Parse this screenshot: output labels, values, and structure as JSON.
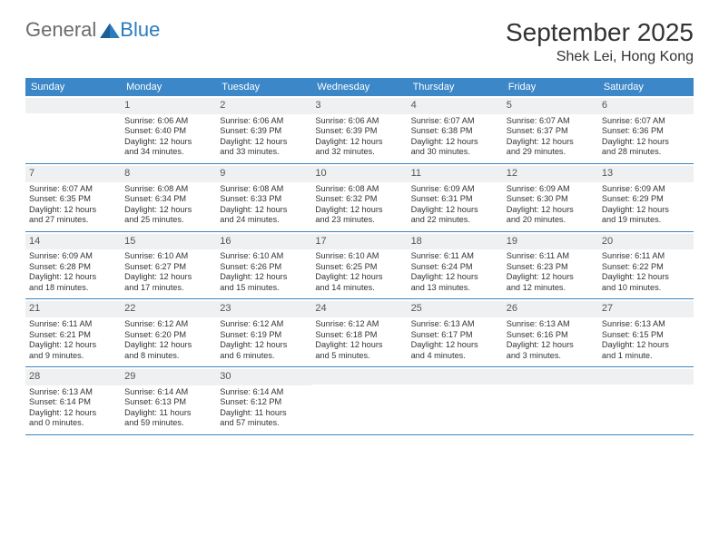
{
  "logo": {
    "part1": "General",
    "part2": "Blue"
  },
  "title": "September 2025",
  "location": "Shek Lei, Hong Kong",
  "colors": {
    "header_bg": "#3b87c8",
    "daynum_bg": "#eef0f2",
    "border": "#3b87c8",
    "text": "#333333",
    "logo_gray": "#6b6b6b",
    "logo_blue": "#2a7bbf"
  },
  "weekdays": [
    "Sunday",
    "Monday",
    "Tuesday",
    "Wednesday",
    "Thursday",
    "Friday",
    "Saturday"
  ],
  "weeks": [
    [
      {
        "n": "",
        "lines": []
      },
      {
        "n": "1",
        "lines": [
          "Sunrise: 6:06 AM",
          "Sunset: 6:40 PM",
          "Daylight: 12 hours",
          "and 34 minutes."
        ]
      },
      {
        "n": "2",
        "lines": [
          "Sunrise: 6:06 AM",
          "Sunset: 6:39 PM",
          "Daylight: 12 hours",
          "and 33 minutes."
        ]
      },
      {
        "n": "3",
        "lines": [
          "Sunrise: 6:06 AM",
          "Sunset: 6:39 PM",
          "Daylight: 12 hours",
          "and 32 minutes."
        ]
      },
      {
        "n": "4",
        "lines": [
          "Sunrise: 6:07 AM",
          "Sunset: 6:38 PM",
          "Daylight: 12 hours",
          "and 30 minutes."
        ]
      },
      {
        "n": "5",
        "lines": [
          "Sunrise: 6:07 AM",
          "Sunset: 6:37 PM",
          "Daylight: 12 hours",
          "and 29 minutes."
        ]
      },
      {
        "n": "6",
        "lines": [
          "Sunrise: 6:07 AM",
          "Sunset: 6:36 PM",
          "Daylight: 12 hours",
          "and 28 minutes."
        ]
      }
    ],
    [
      {
        "n": "7",
        "lines": [
          "Sunrise: 6:07 AM",
          "Sunset: 6:35 PM",
          "Daylight: 12 hours",
          "and 27 minutes."
        ]
      },
      {
        "n": "8",
        "lines": [
          "Sunrise: 6:08 AM",
          "Sunset: 6:34 PM",
          "Daylight: 12 hours",
          "and 25 minutes."
        ]
      },
      {
        "n": "9",
        "lines": [
          "Sunrise: 6:08 AM",
          "Sunset: 6:33 PM",
          "Daylight: 12 hours",
          "and 24 minutes."
        ]
      },
      {
        "n": "10",
        "lines": [
          "Sunrise: 6:08 AM",
          "Sunset: 6:32 PM",
          "Daylight: 12 hours",
          "and 23 minutes."
        ]
      },
      {
        "n": "11",
        "lines": [
          "Sunrise: 6:09 AM",
          "Sunset: 6:31 PM",
          "Daylight: 12 hours",
          "and 22 minutes."
        ]
      },
      {
        "n": "12",
        "lines": [
          "Sunrise: 6:09 AM",
          "Sunset: 6:30 PM",
          "Daylight: 12 hours",
          "and 20 minutes."
        ]
      },
      {
        "n": "13",
        "lines": [
          "Sunrise: 6:09 AM",
          "Sunset: 6:29 PM",
          "Daylight: 12 hours",
          "and 19 minutes."
        ]
      }
    ],
    [
      {
        "n": "14",
        "lines": [
          "Sunrise: 6:09 AM",
          "Sunset: 6:28 PM",
          "Daylight: 12 hours",
          "and 18 minutes."
        ]
      },
      {
        "n": "15",
        "lines": [
          "Sunrise: 6:10 AM",
          "Sunset: 6:27 PM",
          "Daylight: 12 hours",
          "and 17 minutes."
        ]
      },
      {
        "n": "16",
        "lines": [
          "Sunrise: 6:10 AM",
          "Sunset: 6:26 PM",
          "Daylight: 12 hours",
          "and 15 minutes."
        ]
      },
      {
        "n": "17",
        "lines": [
          "Sunrise: 6:10 AM",
          "Sunset: 6:25 PM",
          "Daylight: 12 hours",
          "and 14 minutes."
        ]
      },
      {
        "n": "18",
        "lines": [
          "Sunrise: 6:11 AM",
          "Sunset: 6:24 PM",
          "Daylight: 12 hours",
          "and 13 minutes."
        ]
      },
      {
        "n": "19",
        "lines": [
          "Sunrise: 6:11 AM",
          "Sunset: 6:23 PM",
          "Daylight: 12 hours",
          "and 12 minutes."
        ]
      },
      {
        "n": "20",
        "lines": [
          "Sunrise: 6:11 AM",
          "Sunset: 6:22 PM",
          "Daylight: 12 hours",
          "and 10 minutes."
        ]
      }
    ],
    [
      {
        "n": "21",
        "lines": [
          "Sunrise: 6:11 AM",
          "Sunset: 6:21 PM",
          "Daylight: 12 hours",
          "and 9 minutes."
        ]
      },
      {
        "n": "22",
        "lines": [
          "Sunrise: 6:12 AM",
          "Sunset: 6:20 PM",
          "Daylight: 12 hours",
          "and 8 minutes."
        ]
      },
      {
        "n": "23",
        "lines": [
          "Sunrise: 6:12 AM",
          "Sunset: 6:19 PM",
          "Daylight: 12 hours",
          "and 6 minutes."
        ]
      },
      {
        "n": "24",
        "lines": [
          "Sunrise: 6:12 AM",
          "Sunset: 6:18 PM",
          "Daylight: 12 hours",
          "and 5 minutes."
        ]
      },
      {
        "n": "25",
        "lines": [
          "Sunrise: 6:13 AM",
          "Sunset: 6:17 PM",
          "Daylight: 12 hours",
          "and 4 minutes."
        ]
      },
      {
        "n": "26",
        "lines": [
          "Sunrise: 6:13 AM",
          "Sunset: 6:16 PM",
          "Daylight: 12 hours",
          "and 3 minutes."
        ]
      },
      {
        "n": "27",
        "lines": [
          "Sunrise: 6:13 AM",
          "Sunset: 6:15 PM",
          "Daylight: 12 hours",
          "and 1 minute."
        ]
      }
    ],
    [
      {
        "n": "28",
        "lines": [
          "Sunrise: 6:13 AM",
          "Sunset: 6:14 PM",
          "Daylight: 12 hours",
          "and 0 minutes."
        ]
      },
      {
        "n": "29",
        "lines": [
          "Sunrise: 6:14 AM",
          "Sunset: 6:13 PM",
          "Daylight: 11 hours",
          "and 59 minutes."
        ]
      },
      {
        "n": "30",
        "lines": [
          "Sunrise: 6:14 AM",
          "Sunset: 6:12 PM",
          "Daylight: 11 hours",
          "and 57 minutes."
        ]
      },
      {
        "n": "",
        "lines": []
      },
      {
        "n": "",
        "lines": []
      },
      {
        "n": "",
        "lines": []
      },
      {
        "n": "",
        "lines": []
      }
    ]
  ]
}
